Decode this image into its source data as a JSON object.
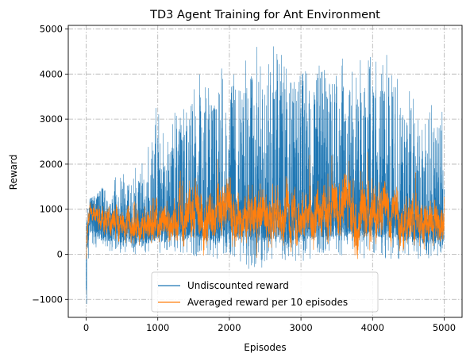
{
  "chart_data": {
    "type": "line",
    "title": "TD3 Agent Training for Ant Environment",
    "xlabel": "Episodes",
    "ylabel": "Reward",
    "xlim": [
      -250,
      5250
    ],
    "ylim": [
      -1400,
      5080
    ],
    "xticks": [
      0,
      1000,
      2000,
      3000,
      4000,
      5000
    ],
    "yticks": [
      -1000,
      0,
      1000,
      2000,
      3000,
      4000,
      5000
    ],
    "xtick_labels": [
      "0",
      "1000",
      "2000",
      "3000",
      "4000",
      "5000"
    ],
    "ytick_labels": [
      "−1000",
      "0",
      "1000",
      "2000",
      "3000",
      "4000",
      "5000"
    ],
    "grid": true,
    "legend_position": "bottom-center",
    "episodes": 5000,
    "series": [
      {
        "name": "Undiscounted reward",
        "color": "#1f77b4",
        "envelope": {
          "x": [
            0,
            10,
            50,
            100,
            200,
            400,
            600,
            800,
            1000,
            1200,
            1400,
            1500,
            1600,
            1800,
            2000,
            2200,
            2400,
            2600,
            2800,
            3000,
            3200,
            3400,
            3600,
            3800,
            4000,
            4200,
            4400,
            4600,
            4800,
            5000
          ],
          "low": [
            -1100,
            -300,
            0,
            200,
            0,
            0,
            0,
            0,
            0,
            0,
            0,
            -100,
            0,
            -150,
            0,
            -250,
            -450,
            -200,
            -150,
            -150,
            -100,
            -100,
            -100,
            -100,
            -100,
            -100,
            -100,
            -100,
            -100,
            0
          ],
          "typical_high": [
            800,
            900,
            1100,
            1200,
            1300,
            1400,
            1500,
            1600,
            1900,
            2300,
            2600,
            3000,
            3100,
            3200,
            3300,
            3500,
            3600,
            3400,
            3400,
            3300,
            3300,
            3500,
            3600,
            3400,
            3300,
            3200,
            3000,
            2800,
            2500,
            2400
          ],
          "peak": [
            950,
            1000,
            1250,
            1300,
            1450,
            1750,
            1850,
            2050,
            3450,
            3150,
            3350,
            3900,
            4050,
            4200,
            4100,
            4400,
            4750,
            4650,
            4300,
            4050,
            4200,
            4400,
            4400,
            4300,
            4400,
            4500,
            4050,
            3450,
            3450,
            3300
          ]
        }
      },
      {
        "name": "Averaged reward per 10 episodes",
        "color": "#ff7f0e",
        "envelope": {
          "x": [
            0,
            10,
            50,
            100,
            200,
            400,
            600,
            800,
            1000,
            1200,
            1400,
            1500,
            1600,
            1800,
            2000,
            2200,
            2400,
            2600,
            2800,
            3000,
            3200,
            3400,
            3600,
            3800,
            4000,
            4200,
            4400,
            4600,
            4800,
            5000
          ],
          "mean": [
            -300,
            400,
            950,
            850,
            750,
            700,
            600,
            550,
            700,
            800,
            750,
            1000,
            800,
            750,
            950,
            900,
            850,
            800,
            850,
            800,
            900,
            1000,
            1000,
            950,
            1000,
            950,
            750,
            700,
            650,
            700
          ],
          "spread": [
            200,
            300,
            150,
            200,
            300,
            350,
            350,
            400,
            450,
            500,
            600,
            700,
            650,
            600,
            650,
            650,
            650,
            600,
            600,
            550,
            600,
            650,
            700,
            700,
            700,
            600,
            550,
            500,
            500,
            450
          ]
        }
      }
    ]
  }
}
